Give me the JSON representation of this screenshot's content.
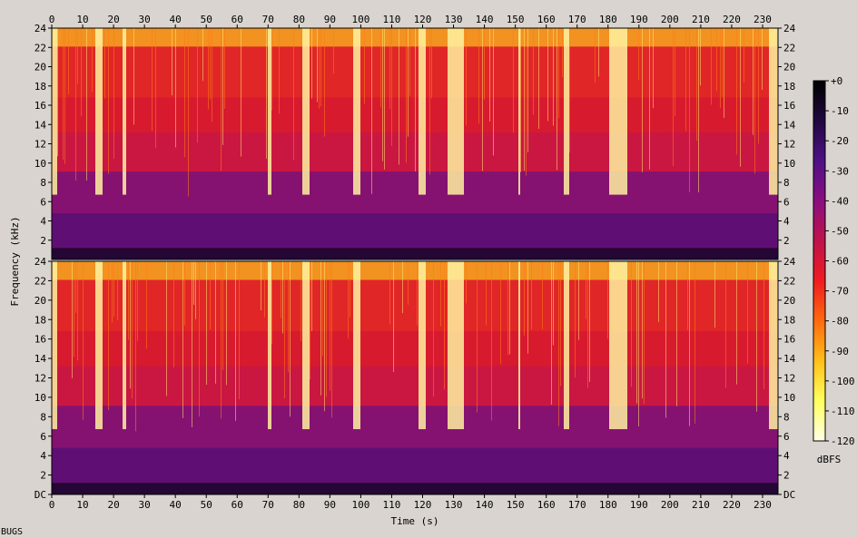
{
  "chart_data": {
    "type": "heatmap",
    "xlabel": "Time (s)",
    "ylabel": "Frequency (kHz)",
    "xlim": [
      0,
      235
    ],
    "ylim": [
      0,
      24
    ],
    "x_ticks": [
      0,
      10,
      20,
      30,
      40,
      50,
      60,
      70,
      80,
      90,
      100,
      110,
      120,
      130,
      140,
      150,
      160,
      170,
      180,
      190,
      200,
      210,
      220,
      230
    ],
    "channel_1_y_ticks": [
      "24",
      "22",
      "20",
      "18",
      "16",
      "14",
      "12",
      "10",
      "8",
      "6",
      "4",
      "2"
    ],
    "channel_2_y_ticks": [
      "24",
      "22",
      "20",
      "18",
      "16",
      "14",
      "12",
      "10",
      "8",
      "6",
      "4",
      "2",
      "DC"
    ],
    "colorbar": {
      "label": "dBFS",
      "ticks": [
        "+0",
        "-10",
        "-20",
        "-30",
        "-40",
        "-50",
        "-60",
        "-70",
        "-80",
        "-90",
        "-100",
        "-110",
        "-120"
      ],
      "range": [
        -120,
        0
      ]
    },
    "channels": 2,
    "stops": [
      "#ffffe8",
      "#ffff60",
      "#ffc018",
      "#ff6a10",
      "#f01c20",
      "#c0124a",
      "#8a0e80",
      "#4e1086",
      "#200840",
      "#000000"
    ],
    "quiet_segments_s": [
      [
        0,
        1.5
      ],
      [
        14,
        16
      ],
      [
        22.5,
        24
      ],
      [
        69.5,
        70.5
      ],
      [
        81,
        83
      ],
      [
        97,
        99.5
      ],
      [
        118.5,
        121
      ],
      [
        127.5,
        133
      ],
      [
        150.5,
        151.5
      ],
      [
        165.5,
        167
      ],
      [
        180,
        186
      ],
      [
        232,
        235
      ]
    ]
  },
  "footer_label": "BUGS"
}
